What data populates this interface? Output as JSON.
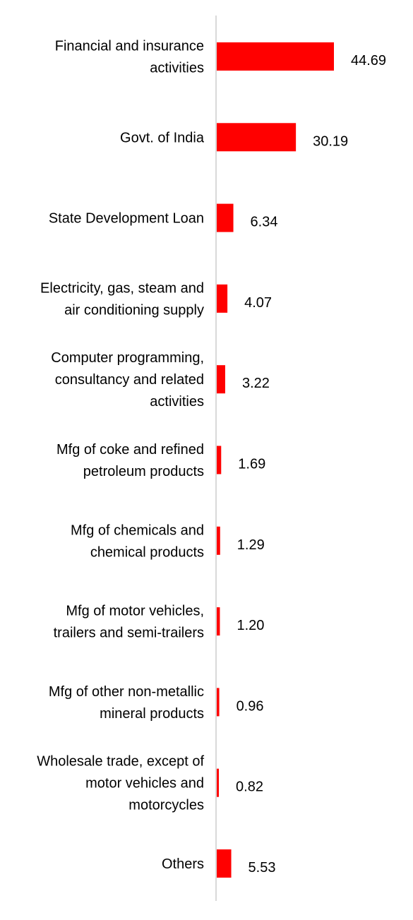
{
  "chart_data": {
    "type": "bar",
    "orientation": "horizontal",
    "title": "",
    "xlabel": "",
    "ylabel": "",
    "categories": [
      [
        "Financial and insurance",
        "activities"
      ],
      [
        "Govt. of India"
      ],
      [
        "State Development Loan"
      ],
      [
        "Electricity, gas, steam and",
        "air conditioning supply"
      ],
      [
        "Computer programming,",
        "consultancy and related",
        "activities"
      ],
      [
        "Mfg of coke and refined",
        "petroleum products"
      ],
      [
        "Mfg of chemicals and",
        "chemical products"
      ],
      [
        "Mfg of motor vehicles,",
        "trailers and semi-trailers"
      ],
      [
        "Mfg of other non-metallic",
        "mineral products"
      ],
      [
        "Wholesale trade, except of",
        "motor vehicles and",
        "motorcycles"
      ],
      [
        "Others"
      ]
    ],
    "values": [
      44.69,
      30.19,
      6.34,
      4.07,
      3.22,
      1.69,
      1.29,
      1.2,
      0.96,
      0.82,
      5.53
    ],
    "value_labels": [
      "44.69",
      "30.19",
      "6.34",
      "4.07",
      "3.22",
      "1.69",
      "1.29",
      "1.20",
      "0.96",
      "0.82",
      "5.53"
    ],
    "xlim": [
      0,
      44.69
    ],
    "grid": false,
    "legend": "none",
    "bar_color": "#ff0000",
    "axis_color": "#d9d9d9"
  }
}
